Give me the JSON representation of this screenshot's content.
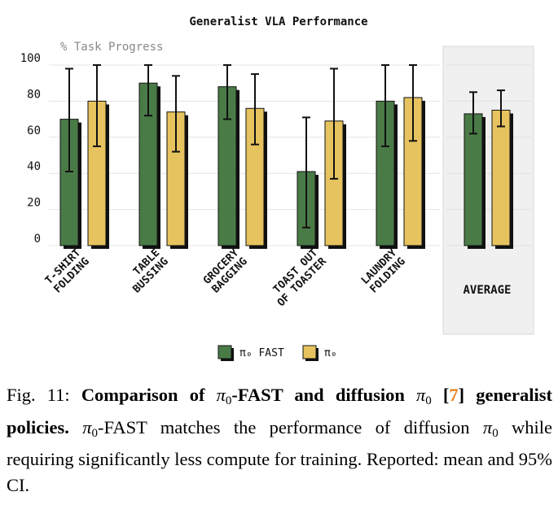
{
  "chart_data": {
    "type": "bar",
    "title": "Generalist VLA Performance",
    "ylabel": "% Task Progress",
    "ylim": [
      0,
      100
    ],
    "yticks": [
      0,
      20,
      40,
      60,
      80,
      100
    ],
    "categories": [
      [
        "T-SHIRT",
        "FOLDING"
      ],
      [
        "TABLE",
        "BUSSING"
      ],
      [
        "GROCERY",
        "BAGGING"
      ],
      [
        "TOAST OUT",
        "OF TOASTER"
      ],
      [
        "LAUNDRY",
        "FOLDING"
      ],
      [
        "AVERAGE"
      ]
    ],
    "series": [
      {
        "name": "π₀ FAST",
        "color": "#4a7b47",
        "values": [
          70,
          90,
          88,
          41,
          80,
          73
        ],
        "ci_low": [
          41,
          72,
          70,
          10,
          55,
          62
        ],
        "ci_high": [
          98,
          100,
          100,
          71,
          100,
          85
        ]
      },
      {
        "name": "π₀",
        "color": "#e6c35e",
        "values": [
          80,
          74,
          76,
          69,
          82,
          75
        ],
        "ci_low": [
          55,
          52,
          56,
          37,
          58,
          66
        ],
        "ci_high": [
          100,
          94,
          95,
          98,
          100,
          86
        ]
      }
    ],
    "grid": true,
    "highlighted_category": "AVERAGE",
    "legend_position": "bottom-center"
  },
  "caption": {
    "fig_label": "Fig. 11:",
    "bold_a": "Comparison of",
    "pi": "π",
    "sub": "0",
    "bold_b": "-FAST and diffusion",
    "ref": "7",
    "bold_c": "generalist policies.",
    "text_a": "-FAST matches the performance of diffusion",
    "text_b": "while requiring significantly less compute for training. Reported: mean and 95% CI."
  }
}
